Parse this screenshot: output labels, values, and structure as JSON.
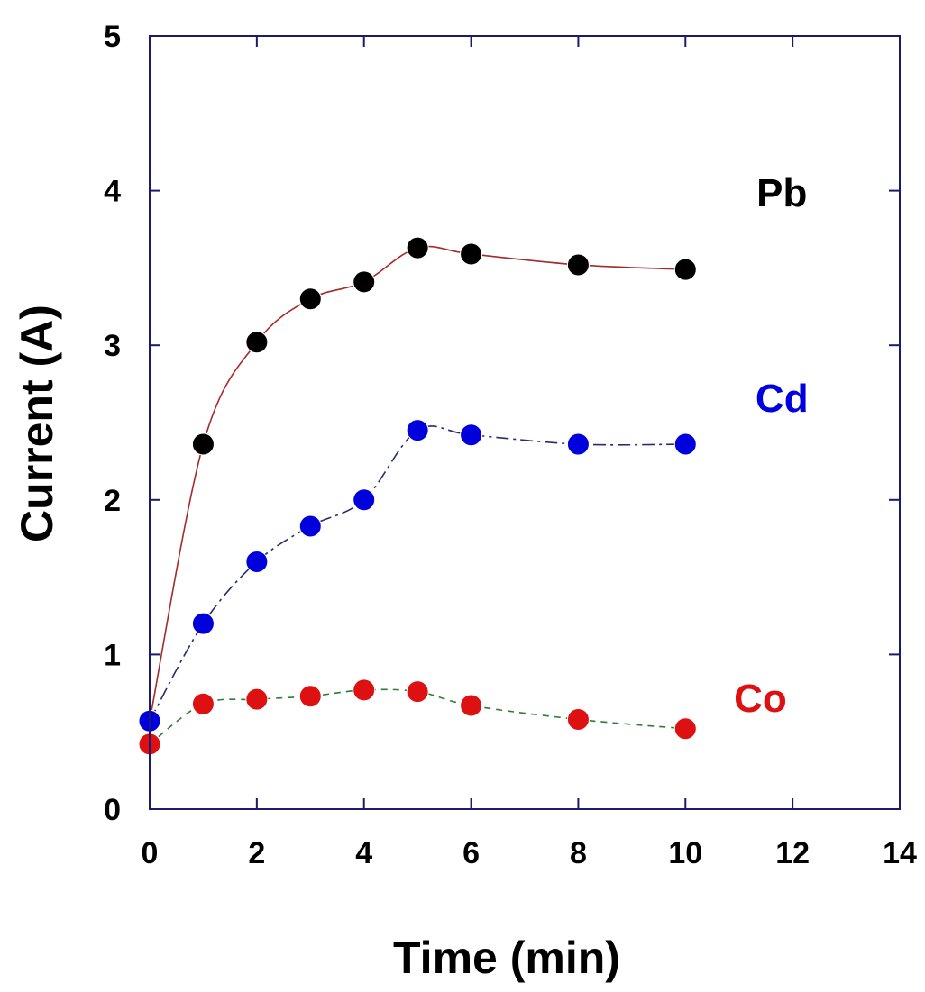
{
  "chart_data": {
    "type": "scatter",
    "xlabel": "Time (min)",
    "ylabel": "Current (A)",
    "xlim": [
      0,
      14
    ],
    "ylim": [
      0,
      5
    ],
    "xticks": [
      0,
      2,
      4,
      6,
      8,
      10,
      12,
      14
    ],
    "yticks": [
      0,
      1,
      2,
      3,
      4,
      5
    ],
    "grid": false,
    "series": [
      {
        "name": "Pb",
        "marker_color": "#000000",
        "line_color": "#a52a2a",
        "line_style": "solid",
        "x": [
          0,
          1,
          2,
          3,
          4,
          5,
          6,
          8,
          10
        ],
        "y": [
          0.57,
          2.36,
          3.02,
          3.3,
          3.41,
          3.63,
          3.59,
          3.52,
          3.49
        ]
      },
      {
        "name": "Cd",
        "marker_color": "#0000dd",
        "line_color": "#2b2b6b",
        "line_style": "dashdot",
        "x": [
          0,
          1,
          2,
          3,
          4,
          5,
          6,
          8,
          10
        ],
        "y": [
          0.57,
          1.2,
          1.6,
          1.83,
          2.0,
          2.45,
          2.42,
          2.36,
          2.36
        ]
      },
      {
        "name": "Co",
        "marker_color": "#dd1111",
        "line_color": "#2e7d32",
        "line_style": "dashed",
        "x": [
          0,
          1,
          2,
          3,
          4,
          5,
          6,
          8,
          10
        ],
        "y": [
          0.42,
          0.68,
          0.71,
          0.73,
          0.77,
          0.76,
          0.67,
          0.58,
          0.52
        ]
      }
    ]
  }
}
